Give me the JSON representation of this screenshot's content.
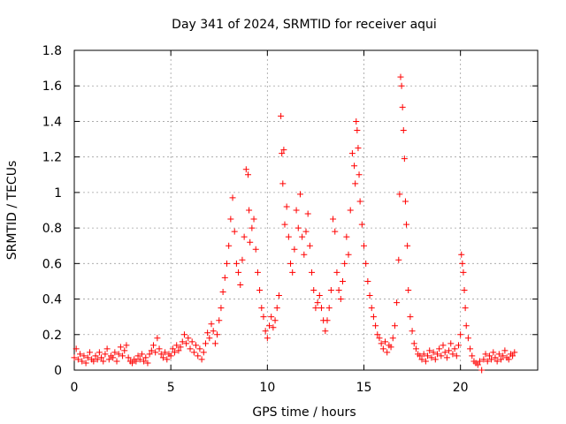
{
  "chart_data": {
    "type": "scatter",
    "title": "Day 341 of 2024, SRMTID for receiver aqui",
    "xlabel": "GPS time / hours",
    "ylabel": "SRMTID / TECUs",
    "xlim": [
      0,
      24
    ],
    "ylim": [
      0,
      1.8
    ],
    "xticks": [
      0,
      5,
      10,
      15,
      20
    ],
    "xtick_labels": [
      "0",
      "5",
      "10",
      "15",
      "20"
    ],
    "yticks": [
      0,
      0.2,
      0.4,
      0.6,
      0.8,
      1,
      1.2,
      1.4,
      1.6,
      1.8
    ],
    "ytick_labels": [
      "0",
      "0.2",
      "0.4",
      "0.6",
      "0.8",
      "1",
      "1.2",
      "1.4",
      "1.6",
      "1.8"
    ],
    "grid": true,
    "marker": "plus",
    "color": "#ff0000",
    "series": [
      {
        "name": "SRMTID",
        "points": [
          [
            0.0,
            0.07
          ],
          [
            0.1,
            0.12
          ],
          [
            0.2,
            0.06
          ],
          [
            0.3,
            0.09
          ],
          [
            0.4,
            0.05
          ],
          [
            0.5,
            0.08
          ],
          [
            0.6,
            0.04
          ],
          [
            0.7,
            0.07
          ],
          [
            0.8,
            0.1
          ],
          [
            0.9,
            0.06
          ],
          [
            1.0,
            0.05
          ],
          [
            1.1,
            0.08
          ],
          [
            1.2,
            0.06
          ],
          [
            1.3,
            0.1
          ],
          [
            1.4,
            0.07
          ],
          [
            1.5,
            0.05
          ],
          [
            1.6,
            0.09
          ],
          [
            1.7,
            0.12
          ],
          [
            1.8,
            0.06
          ],
          [
            1.9,
            0.08
          ],
          [
            2.0,
            0.07
          ],
          [
            2.1,
            0.1
          ],
          [
            2.2,
            0.05
          ],
          [
            2.3,
            0.09
          ],
          [
            2.4,
            0.13
          ],
          [
            2.5,
            0.08
          ],
          [
            2.6,
            0.11
          ],
          [
            2.7,
            0.14
          ],
          [
            2.8,
            0.07
          ],
          [
            2.9,
            0.05
          ],
          [
            3.0,
            0.04
          ],
          [
            3.1,
            0.06
          ],
          [
            3.2,
            0.05
          ],
          [
            3.3,
            0.08
          ],
          [
            3.4,
            0.06
          ],
          [
            3.5,
            0.09
          ],
          [
            3.6,
            0.05
          ],
          [
            3.7,
            0.07
          ],
          [
            3.8,
            0.04
          ],
          [
            3.9,
            0.09
          ],
          [
            4.0,
            0.11
          ],
          [
            4.1,
            0.14
          ],
          [
            4.2,
            0.1
          ],
          [
            4.3,
            0.18
          ],
          [
            4.4,
            0.12
          ],
          [
            4.5,
            0.09
          ],
          [
            4.6,
            0.07
          ],
          [
            4.7,
            0.1
          ],
          [
            4.8,
            0.06
          ],
          [
            4.9,
            0.09
          ],
          [
            5.0,
            0.08
          ],
          [
            5.1,
            0.12
          ],
          [
            5.2,
            0.1
          ],
          [
            5.3,
            0.14
          ],
          [
            5.4,
            0.11
          ],
          [
            5.5,
            0.13
          ],
          [
            5.6,
            0.16
          ],
          [
            5.7,
            0.2
          ],
          [
            5.8,
            0.15
          ],
          [
            5.9,
            0.18
          ],
          [
            6.0,
            0.12
          ],
          [
            6.1,
            0.16
          ],
          [
            6.2,
            0.1
          ],
          [
            6.3,
            0.14
          ],
          [
            6.4,
            0.08
          ],
          [
            6.5,
            0.12
          ],
          [
            6.6,
            0.06
          ],
          [
            6.7,
            0.1
          ],
          [
            6.8,
            0.15
          ],
          [
            6.9,
            0.21
          ],
          [
            7.0,
            0.18
          ],
          [
            7.1,
            0.26
          ],
          [
            7.2,
            0.22
          ],
          [
            7.3,
            0.15
          ],
          [
            7.4,
            0.2
          ],
          [
            7.5,
            0.28
          ],
          [
            7.6,
            0.35
          ],
          [
            7.7,
            0.44
          ],
          [
            7.8,
            0.52
          ],
          [
            7.9,
            0.6
          ],
          [
            8.0,
            0.7
          ],
          [
            8.1,
            0.85
          ],
          [
            8.2,
            0.97
          ],
          [
            8.3,
            0.78
          ],
          [
            8.4,
            0.6
          ],
          [
            8.5,
            0.55
          ],
          [
            8.6,
            0.48
          ],
          [
            8.7,
            0.62
          ],
          [
            8.8,
            0.75
          ],
          [
            8.9,
            1.13
          ],
          [
            9.0,
            1.1
          ],
          [
            9.05,
            0.9
          ],
          [
            9.1,
            0.72
          ],
          [
            9.2,
            0.8
          ],
          [
            9.3,
            0.85
          ],
          [
            9.4,
            0.68
          ],
          [
            9.5,
            0.55
          ],
          [
            9.6,
            0.45
          ],
          [
            9.7,
            0.35
          ],
          [
            9.8,
            0.3
          ],
          [
            9.9,
            0.22
          ],
          [
            10.0,
            0.18
          ],
          [
            10.1,
            0.25
          ],
          [
            10.2,
            0.3
          ],
          [
            10.3,
            0.24
          ],
          [
            10.4,
            0.28
          ],
          [
            10.5,
            0.35
          ],
          [
            10.6,
            0.42
          ],
          [
            10.7,
            1.43
          ],
          [
            10.75,
            1.22
          ],
          [
            10.8,
            1.05
          ],
          [
            10.85,
            1.24
          ],
          [
            10.9,
            0.82
          ],
          [
            11.0,
            0.92
          ],
          [
            11.1,
            0.75
          ],
          [
            11.2,
            0.6
          ],
          [
            11.3,
            0.55
          ],
          [
            11.4,
            0.68
          ],
          [
            11.5,
            0.9
          ],
          [
            11.6,
            0.8
          ],
          [
            11.7,
            0.99
          ],
          [
            11.8,
            0.75
          ],
          [
            11.9,
            0.65
          ],
          [
            12.0,
            0.78
          ],
          [
            12.1,
            0.88
          ],
          [
            12.2,
            0.7
          ],
          [
            12.3,
            0.55
          ],
          [
            12.4,
            0.45
          ],
          [
            12.5,
            0.35
          ],
          [
            12.6,
            0.38
          ],
          [
            12.7,
            0.42
          ],
          [
            12.8,
            0.35
          ],
          [
            12.9,
            0.28
          ],
          [
            13.0,
            0.22
          ],
          [
            13.1,
            0.28
          ],
          [
            13.2,
            0.35
          ],
          [
            13.3,
            0.45
          ],
          [
            13.4,
            0.85
          ],
          [
            13.5,
            0.78
          ],
          [
            13.6,
            0.55
          ],
          [
            13.7,
            0.45
          ],
          [
            13.8,
            0.4
          ],
          [
            13.9,
            0.5
          ],
          [
            14.0,
            0.6
          ],
          [
            14.1,
            0.75
          ],
          [
            14.2,
            0.65
          ],
          [
            14.3,
            0.9
          ],
          [
            14.4,
            1.22
          ],
          [
            14.5,
            1.15
          ],
          [
            14.55,
            1.05
          ],
          [
            14.6,
            1.4
          ],
          [
            14.65,
            1.35
          ],
          [
            14.7,
            1.25
          ],
          [
            14.75,
            1.1
          ],
          [
            14.8,
            0.95
          ],
          [
            14.9,
            0.82
          ],
          [
            15.0,
            0.7
          ],
          [
            15.1,
            0.6
          ],
          [
            15.2,
            0.5
          ],
          [
            15.3,
            0.42
          ],
          [
            15.4,
            0.35
          ],
          [
            15.5,
            0.3
          ],
          [
            15.6,
            0.25
          ],
          [
            15.7,
            0.2
          ],
          [
            15.8,
            0.18
          ],
          [
            15.9,
            0.15
          ],
          [
            16.0,
            0.12
          ],
          [
            16.1,
            0.16
          ],
          [
            16.2,
            0.1
          ],
          [
            16.3,
            0.14
          ],
          [
            16.4,
            0.13
          ],
          [
            16.5,
            0.18
          ],
          [
            16.6,
            0.25
          ],
          [
            16.7,
            0.38
          ],
          [
            16.8,
            0.62
          ],
          [
            16.85,
            0.99
          ],
          [
            16.9,
            1.65
          ],
          [
            16.95,
            1.6
          ],
          [
            17.0,
            1.48
          ],
          [
            17.05,
            1.35
          ],
          [
            17.1,
            1.19
          ],
          [
            17.15,
            0.95
          ],
          [
            17.2,
            0.82
          ],
          [
            17.25,
            0.7
          ],
          [
            17.3,
            0.45
          ],
          [
            17.4,
            0.3
          ],
          [
            17.5,
            0.22
          ],
          [
            17.6,
            0.15
          ],
          [
            17.7,
            0.12
          ],
          [
            17.8,
            0.09
          ],
          [
            17.9,
            0.08
          ],
          [
            18.0,
            0.06
          ],
          [
            18.1,
            0.09
          ],
          [
            18.2,
            0.05
          ],
          [
            18.3,
            0.08
          ],
          [
            18.4,
            0.11
          ],
          [
            18.5,
            0.07
          ],
          [
            18.6,
            0.1
          ],
          [
            18.7,
            0.06
          ],
          [
            18.8,
            0.09
          ],
          [
            18.9,
            0.12
          ],
          [
            19.0,
            0.08
          ],
          [
            19.1,
            0.14
          ],
          [
            19.2,
            0.1
          ],
          [
            19.3,
            0.07
          ],
          [
            19.4,
            0.11
          ],
          [
            19.5,
            0.15
          ],
          [
            19.6,
            0.09
          ],
          [
            19.7,
            0.12
          ],
          [
            19.8,
            0.08
          ],
          [
            19.9,
            0.14
          ],
          [
            20.0,
            0.2
          ],
          [
            20.05,
            0.65
          ],
          [
            20.1,
            0.6
          ],
          [
            20.15,
            0.55
          ],
          [
            20.2,
            0.45
          ],
          [
            20.25,
            0.35
          ],
          [
            20.3,
            0.25
          ],
          [
            20.4,
            0.18
          ],
          [
            20.5,
            0.12
          ],
          [
            20.6,
            0.08
          ],
          [
            20.7,
            0.05
          ],
          [
            20.8,
            0.04
          ],
          [
            20.9,
            0.03
          ],
          [
            21.0,
            0.05
          ],
          [
            21.1,
            0.0
          ],
          [
            21.2,
            0.06
          ],
          [
            21.3,
            0.09
          ],
          [
            21.4,
            0.05
          ],
          [
            21.5,
            0.08
          ],
          [
            21.6,
            0.06
          ],
          [
            21.7,
            0.1
          ],
          [
            21.8,
            0.07
          ],
          [
            21.9,
            0.05
          ],
          [
            22.0,
            0.09
          ],
          [
            22.1,
            0.06
          ],
          [
            22.2,
            0.08
          ],
          [
            22.3,
            0.11
          ],
          [
            22.4,
            0.07
          ],
          [
            22.5,
            0.06
          ],
          [
            22.6,
            0.09
          ],
          [
            22.7,
            0.08
          ],
          [
            22.8,
            0.1
          ]
        ]
      }
    ]
  }
}
